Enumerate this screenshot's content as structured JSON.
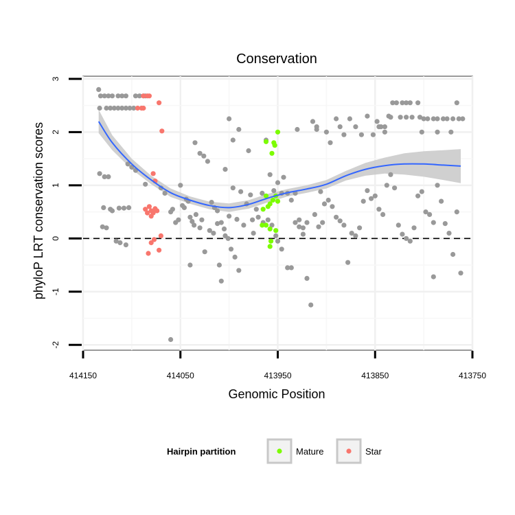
{
  "chart_data": {
    "type": "scatter",
    "title": "Conservation",
    "xlabel": "Genomic Position",
    "ylabel": "phyloP LRT conservation scores",
    "xlim": [
      414150,
      413750
    ],
    "ylim": [
      -2.1,
      3.05
    ],
    "x_reversed": true,
    "xticks": [
      414150,
      414050,
      413950,
      413850,
      413750
    ],
    "xtick_labels": [
      "414150",
      "414050",
      "413950",
      "413850",
      "413750"
    ],
    "yticks": [
      -2,
      -1,
      0,
      1,
      2,
      3
    ],
    "ytick_labels": [
      "-2",
      "-1",
      "0",
      "1",
      "2",
      "3"
    ],
    "reference_line": {
      "y": 0,
      "style": "dashed"
    },
    "legend": {
      "title": "Hairpin partition",
      "position": "bottom",
      "entries": [
        {
          "label": "Mature",
          "color": "#7CFC00"
        },
        {
          "label": "Star",
          "color": "#F8766D"
        }
      ]
    },
    "colors": {
      "other": "#999999",
      "mature": "#7CFC00",
      "star": "#F8766D",
      "smooth": "#3366FF",
      "band": "#C8C8C8"
    },
    "smooth": {
      "x": [
        414134,
        414120,
        414100,
        414080,
        414060,
        414040,
        414020,
        414000,
        413980,
        413960,
        413940,
        413920,
        413900,
        413880,
        413860,
        413840,
        413820,
        413800,
        413780,
        413762
      ],
      "y": [
        2.2,
        1.8,
        1.4,
        1.1,
        0.86,
        0.72,
        0.62,
        0.58,
        0.64,
        0.76,
        0.86,
        0.93,
        1.02,
        1.18,
        1.3,
        1.37,
        1.4,
        1.4,
        1.38,
        1.36
      ],
      "lower": [
        1.98,
        1.66,
        1.3,
        1.02,
        0.78,
        0.65,
        0.55,
        0.5,
        0.56,
        0.68,
        0.79,
        0.86,
        0.94,
        1.09,
        1.18,
        1.22,
        1.2,
        1.16,
        1.1,
        1.04
      ],
      "upper": [
        2.42,
        1.94,
        1.5,
        1.18,
        0.94,
        0.79,
        0.69,
        0.66,
        0.72,
        0.84,
        0.93,
        1.0,
        1.1,
        1.27,
        1.42,
        1.52,
        1.6,
        1.64,
        1.66,
        1.68
      ]
    },
    "series": [
      {
        "name": "Other",
        "points": [
          [
            414134,
            2.8
          ],
          [
            414132,
            2.68
          ],
          [
            414128,
            2.68
          ],
          [
            414124,
            2.68
          ],
          [
            414120,
            2.68
          ],
          [
            414114,
            2.68
          ],
          [
            414110,
            2.68
          ],
          [
            414106,
            2.68
          ],
          [
            414096,
            2.68
          ],
          [
            414092,
            2.68
          ],
          [
            414088,
            2.68
          ],
          [
            414086,
            2.68
          ],
          [
            414133,
            2.45
          ],
          [
            414126,
            2.45
          ],
          [
            414122,
            2.45
          ],
          [
            414118,
            2.45
          ],
          [
            414114,
            2.45
          ],
          [
            414110,
            2.45
          ],
          [
            414106,
            2.45
          ],
          [
            414102,
            2.45
          ],
          [
            414098,
            2.45
          ],
          [
            414133,
            1.22
          ],
          [
            414128,
            1.16
          ],
          [
            414124,
            1.16
          ],
          [
            414129,
            0.58
          ],
          [
            414122,
            0.55
          ],
          [
            414120,
            0.52
          ],
          [
            414113,
            0.57
          ],
          [
            414108,
            0.57
          ],
          [
            414103,
            0.58
          ],
          [
            414130,
            0.22
          ],
          [
            414126,
            0.2
          ],
          [
            414116,
            -0.05
          ],
          [
            414112,
            -0.08
          ],
          [
            414106,
            -0.12
          ],
          [
            414104,
            1.4
          ],
          [
            414100,
            1.34
          ],
          [
            414096,
            1.28
          ],
          [
            414086,
            1.02
          ],
          [
            414050,
            1.0
          ],
          [
            414048,
            0.62
          ],
          [
            414046,
            0.58
          ],
          [
            414044,
            0.74
          ],
          [
            414042,
            0.7
          ],
          [
            414040,
            0.4
          ],
          [
            414038,
            0.32
          ],
          [
            414036,
            0.25
          ],
          [
            414035,
            1.8
          ],
          [
            414030,
            1.6
          ],
          [
            414026,
            1.55
          ],
          [
            414022,
            1.45
          ],
          [
            414018,
            0.68
          ],
          [
            414015,
            0.58
          ],
          [
            414012,
            0.52
          ],
          [
            414008,
            0.3
          ],
          [
            414005,
            0.18
          ],
          [
            414001,
            0.0
          ],
          [
            413998,
            -0.2
          ],
          [
            413994,
            -0.35
          ],
          [
            413990,
            -0.6
          ],
          [
            414040,
            -0.5
          ],
          [
            414025,
            -0.25
          ],
          [
            414010,
            -0.5
          ],
          [
            414004,
            0.05
          ],
          [
            413996,
            0.95
          ],
          [
            413988,
            0.88
          ],
          [
            413982,
            0.65
          ],
          [
            413978,
            0.82
          ],
          [
            413972,
            0.55
          ],
          [
            413966,
            0.85
          ],
          [
            413960,
            0.35
          ],
          [
            413956,
            0.25
          ],
          [
            413952,
            0.05
          ],
          [
            413950,
            -0.05
          ],
          [
            413946,
            -0.2
          ],
          [
            413940,
            -0.55
          ],
          [
            413936,
            -0.55
          ],
          [
            413932,
            0.3
          ],
          [
            413928,
            0.22
          ],
          [
            413924,
            0.08
          ],
          [
            413920,
            -0.75
          ],
          [
            413916,
            -1.25
          ],
          [
            413912,
            0.45
          ],
          [
            413908,
            0.22
          ],
          [
            413904,
            0.3
          ],
          [
            414008,
            -0.8
          ],
          [
            413985,
            0.25
          ],
          [
            413970,
            0.4
          ],
          [
            413962,
            1.85
          ],
          [
            413958,
            1.2
          ],
          [
            413954,
            0.9
          ],
          [
            413950,
            1.05
          ],
          [
            413946,
            0.85
          ],
          [
            413944,
            1.15
          ],
          [
            413940,
            0.85
          ],
          [
            413936,
            0.72
          ],
          [
            413932,
            0.85
          ],
          [
            413928,
            0.35
          ],
          [
            413924,
            0.2
          ],
          [
            413920,
            0.3
          ],
          [
            413914,
            2.2
          ],
          [
            413910,
            2.05
          ],
          [
            413906,
            0.88
          ],
          [
            413902,
            0.65
          ],
          [
            413898,
            0.72
          ],
          [
            413894,
            0.6
          ],
          [
            413890,
            0.4
          ],
          [
            413886,
            0.33
          ],
          [
            413882,
            0.25
          ],
          [
            413878,
            -0.45
          ],
          [
            413874,
            0.1
          ],
          [
            413870,
            0.05
          ],
          [
            413866,
            0.2
          ],
          [
            413862,
            0.7
          ],
          [
            413858,
            0.9
          ],
          [
            413854,
            0.75
          ],
          [
            413850,
            0.8
          ],
          [
            413846,
            0.55
          ],
          [
            413842,
            0.45
          ],
          [
            413838,
            1.0
          ],
          [
            413834,
            1.2
          ],
          [
            413830,
            0.95
          ],
          [
            413826,
            0.25
          ],
          [
            413822,
            0.08
          ],
          [
            413818,
            0.0
          ],
          [
            413814,
            -0.05
          ],
          [
            413810,
            0.2
          ],
          [
            413806,
            0.8
          ],
          [
            413802,
            0.88
          ],
          [
            413798,
            0.5
          ],
          [
            413794,
            0.45
          ],
          [
            413790,
            0.3
          ],
          [
            413786,
            1.0
          ],
          [
            413782,
            0.7
          ],
          [
            413778,
            0.28
          ],
          [
            413774,
            0.1
          ],
          [
            413770,
            -0.3
          ],
          [
            413766,
            0.5
          ],
          [
            413762,
            -0.65
          ],
          [
            413790,
            -0.72
          ],
          [
            413930,
            2.05
          ],
          [
            413910,
            2.1
          ],
          [
            413900,
            2.0
          ],
          [
            413896,
            1.8
          ],
          [
            413890,
            2.25
          ],
          [
            413886,
            2.1
          ],
          [
            413882,
            1.95
          ],
          [
            413876,
            2.25
          ],
          [
            413870,
            2.1
          ],
          [
            413864,
            1.95
          ],
          [
            413858,
            2.3
          ],
          [
            413852,
            1.95
          ],
          [
            413848,
            2.2
          ],
          [
            413844,
            2.1
          ],
          [
            413840,
            2.0
          ],
          [
            413836,
            2.3
          ],
          [
            413832,
            2.55
          ],
          [
            413828,
            2.55
          ],
          [
            413822,
            2.55
          ],
          [
            413818,
            2.55
          ],
          [
            413814,
            2.55
          ],
          [
            413806,
            2.55
          ],
          [
            413800,
            2.25
          ],
          [
            413796,
            2.25
          ],
          [
            413790,
            2.25
          ],
          [
            413786,
            2.25
          ],
          [
            413780,
            2.25
          ],
          [
            413776,
            2.25
          ],
          [
            413770,
            2.25
          ],
          [
            413766,
            2.55
          ],
          [
            413764,
            2.25
          ],
          [
            413760,
            2.25
          ],
          [
            413804,
            2.28
          ],
          [
            413812,
            2.28
          ],
          [
            413818,
            2.28
          ],
          [
            413824,
            2.28
          ],
          [
            413834,
            2.28
          ],
          [
            413840,
            2.1
          ],
          [
            413846,
            2.1
          ],
          [
            413802,
            2.0
          ],
          [
            413786,
            2.0
          ],
          [
            413772,
            2.0
          ],
          [
            414000,
            2.25
          ],
          [
            414004,
            1.3
          ],
          [
            413996,
            1.85
          ],
          [
            413990,
            2.05
          ],
          [
            413980,
            1.65
          ],
          [
            413976,
            0.35
          ],
          [
            414060,
            -1.9
          ],
          [
            414055,
            0.3
          ],
          [
            414052,
            0.35
          ],
          [
            414030,
            0.2
          ],
          [
            414020,
            0.15
          ],
          [
            413975,
            0.1
          ],
          [
            413965,
            0.3
          ],
          [
            414070,
            0.95
          ],
          [
            414066,
            0.85
          ],
          [
            414060,
            0.5
          ],
          [
            414058,
            0.55
          ],
          [
            414034,
            0.45
          ],
          [
            414028,
            0.35
          ],
          [
            414016,
            0.1
          ],
          [
            414012,
            0.28
          ],
          [
            414000,
            0.42
          ],
          [
            413992,
            0.36
          ]
        ]
      },
      {
        "name": "Mature",
        "points": [
          [
            413962,
            1.82
          ],
          [
            413956,
            1.6
          ],
          [
            413954,
            1.8
          ],
          [
            413953,
            1.75
          ],
          [
            413950,
            2.0
          ],
          [
            413958,
            0.65
          ],
          [
            413955,
            0.72
          ],
          [
            413962,
            0.8
          ],
          [
            413960,
            0.6
          ],
          [
            413952,
            0.8
          ],
          [
            413950,
            0.7
          ],
          [
            413965,
            0.55
          ],
          [
            413962,
            0.25
          ],
          [
            413966,
            0.25
          ],
          [
            413958,
            0.18
          ],
          [
            413952,
            0.15
          ],
          [
            413957,
            -0.05
          ],
          [
            413958,
            -0.15
          ]
        ]
      },
      {
        "name": "Star",
        "points": [
          [
            414088,
            2.68
          ],
          [
            414084,
            2.68
          ],
          [
            414082,
            2.68
          ],
          [
            414094,
            2.45
          ],
          [
            414090,
            2.45
          ],
          [
            414088,
            2.45
          ],
          [
            414072,
            2.55
          ],
          [
            414069,
            2.02
          ],
          [
            414078,
            1.22
          ],
          [
            414076,
            1.08
          ],
          [
            414086,
            0.55
          ],
          [
            414084,
            0.48
          ],
          [
            414082,
            0.6
          ],
          [
            414080,
            0.52
          ],
          [
            414078,
            0.48
          ],
          [
            414076,
            0.56
          ],
          [
            414074,
            0.52
          ],
          [
            414080,
            0.42
          ],
          [
            414083,
            -0.28
          ],
          [
            414080,
            -0.08
          ],
          [
            414077,
            -0.02
          ],
          [
            414070,
            0.05
          ],
          [
            414072,
            -0.22
          ]
        ]
      }
    ]
  }
}
